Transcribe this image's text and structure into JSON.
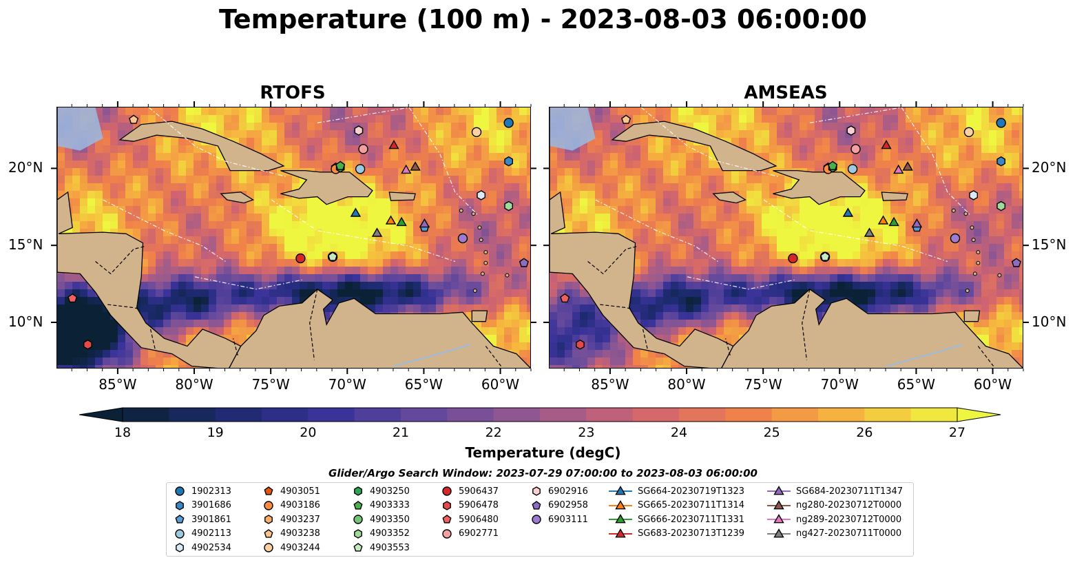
{
  "title": "Temperature (100 m) - 2023-08-03 06:00:00",
  "panels": [
    {
      "key": "rtofs",
      "title": "RTOFS"
    },
    {
      "key": "amseas",
      "title": "AMSEAS"
    }
  ],
  "lon_ticks": [
    "85°W",
    "80°W",
    "75°W",
    "70°W",
    "65°W",
    "60°W"
  ],
  "lat_ticks": [
    "20°N",
    "15°N",
    "10°N"
  ],
  "map_extent": {
    "lon": [
      -89,
      -58
    ],
    "lat": [
      7,
      24
    ]
  },
  "colorbar": {
    "label": "Temperature (degC)",
    "min": 18,
    "max": 27,
    "step": 0.5,
    "ticks": [
      "18",
      "19",
      "20",
      "21",
      "22",
      "23",
      "24",
      "25",
      "26",
      "27"
    ],
    "extend": "both"
  },
  "search_window": "Glider/Argo Search Window: 2023-07-29 07:00:00 to 2023-08-03 06:00:00",
  "colors": {
    "land": "#d2b48c",
    "shallow": "#9bbbe0",
    "warm": "#f4a040",
    "hot": "#f6e742",
    "cool": "#4a3c9a",
    "cold": "#0b2236"
  },
  "floats": [
    {
      "id": "1902313",
      "marker": "circle",
      "color": "#1f77b4",
      "lon": -59.5,
      "lat": 23.0
    },
    {
      "id": "3901686",
      "marker": "hexagon",
      "color": "#3a87c4",
      "lon": -59.5,
      "lat": 20.5
    },
    {
      "id": "3901861",
      "marker": "pentagon",
      "color": "#5a9bd4",
      "lon": -65.0,
      "lat": 16.2
    },
    {
      "id": "4902113",
      "marker": "circle",
      "color": "#9ecae1",
      "lon": -69.2,
      "lat": 20.0
    },
    {
      "id": "4902534",
      "marker": "hexagon",
      "color": "#dbe9f6",
      "lon": -61.3,
      "lat": 18.3
    },
    {
      "id": "4903051",
      "marker": "pentagon",
      "color": "#e6550d",
      "lon": -70.8,
      "lat": 20.1
    },
    {
      "id": "4903186",
      "marker": "circle",
      "color": "#fd8d3c",
      "lon": -70.8,
      "lat": 20.0
    },
    {
      "id": "4903237",
      "marker": "hexagon",
      "color": "#fdae6b",
      "lon": -69.3,
      "lat": 22.5
    },
    {
      "id": "4903238",
      "marker": "pentagon",
      "color": "#fdc48c",
      "lon": -84.0,
      "lat": 23.2
    },
    {
      "id": "4903244",
      "marker": "circle",
      "color": "#fdd0a2",
      "lon": -61.6,
      "lat": 22.4
    },
    {
      "id": "4903250",
      "marker": "hexagon",
      "color": "#31a354",
      "lon": -70.5,
      "lat": 20.1
    },
    {
      "id": "4903333",
      "marker": "pentagon",
      "color": "#4daf4a",
      "lon": -70.5,
      "lat": 20.2
    },
    {
      "id": "4903350",
      "marker": "circle",
      "color": "#74c476",
      "lon": -71.0,
      "lat": 14.3
    },
    {
      "id": "4903352",
      "marker": "hexagon",
      "color": "#a1d99b",
      "lon": -59.5,
      "lat": 17.6
    },
    {
      "id": "4903553",
      "marker": "pentagon",
      "color": "#c7e9c0",
      "lon": -71.0,
      "lat": 14.3
    },
    {
      "id": "5906437",
      "marker": "circle",
      "color": "#d62728",
      "lon": -73.1,
      "lat": 14.2
    },
    {
      "id": "5906478",
      "marker": "hexagon",
      "color": "#e34a4a",
      "lon": -87.0,
      "lat": 8.6
    },
    {
      "id": "5906480",
      "marker": "pentagon",
      "color": "#f06060",
      "lon": -88.0,
      "lat": 11.6
    },
    {
      "id": "6902771",
      "marker": "circle",
      "color": "#f4a0a0",
      "lon": -69.0,
      "lat": 21.3
    },
    {
      "id": "6902916",
      "marker": "hexagon",
      "color": "#fbd0d0",
      "lon": -69.3,
      "lat": 22.5
    },
    {
      "id": "6902958",
      "marker": "pentagon",
      "color": "#8e6cc0",
      "lon": -58.5,
      "lat": 13.9
    },
    {
      "id": "6903111",
      "marker": "circle",
      "color": "#9e7ad0",
      "lon": -62.5,
      "lat": 15.5
    }
  ],
  "gliders": [
    {
      "id": "SG664-20230719T1323",
      "color": "#1f77b4",
      "lon": -69.5,
      "lat": 17.1
    },
    {
      "id": "SG665-20230711T1314",
      "color": "#ff7f0e",
      "lon": -67.2,
      "lat": 16.6
    },
    {
      "id": "SG666-20230711T1331",
      "color": "#2ca02c",
      "lon": -66.5,
      "lat": 16.5
    },
    {
      "id": "SG683-20230713T1239",
      "color": "#d62728",
      "lon": -67.0,
      "lat": 21.5
    },
    {
      "id": "SG684-20230711T1347",
      "color": "#9467bd",
      "lon": -65.0,
      "lat": 16.4
    },
    {
      "id": "ng280-20230712T0000",
      "color": "#8c564b",
      "lon": -65.6,
      "lat": 20.1
    },
    {
      "id": "ng289-20230712T0000",
      "color": "#e377c2",
      "lon": -66.2,
      "lat": 19.9
    },
    {
      "id": "ng427-20230711T0000",
      "color": "#7f7f7f",
      "lon": -68.1,
      "lat": 15.8
    }
  ]
}
